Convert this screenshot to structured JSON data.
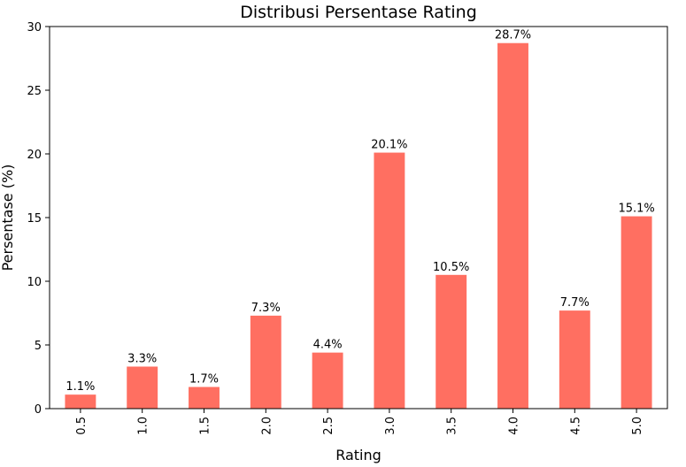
{
  "chart_data": {
    "type": "bar",
    "title": "Distribusi Persentase Rating",
    "xlabel": "Rating",
    "ylabel": "Persentase (%)",
    "categories": [
      "0.5",
      "1.0",
      "1.5",
      "2.0",
      "2.5",
      "3.0",
      "3.5",
      "4.0",
      "4.5",
      "5.0"
    ],
    "values": [
      1.1,
      3.3,
      1.7,
      7.3,
      4.4,
      20.1,
      10.5,
      28.7,
      7.7,
      15.1
    ],
    "data_labels": [
      "1.1%",
      "3.3%",
      "1.7%",
      "7.3%",
      "4.4%",
      "20.1%",
      "10.5%",
      "28.7%",
      "7.7%",
      "15.1%"
    ],
    "yticks": [
      0,
      5,
      10,
      15,
      20,
      25,
      30
    ],
    "ylim": [
      0,
      30
    ],
    "bar_color": "#ff6f61",
    "grid": false,
    "legend": "none"
  }
}
